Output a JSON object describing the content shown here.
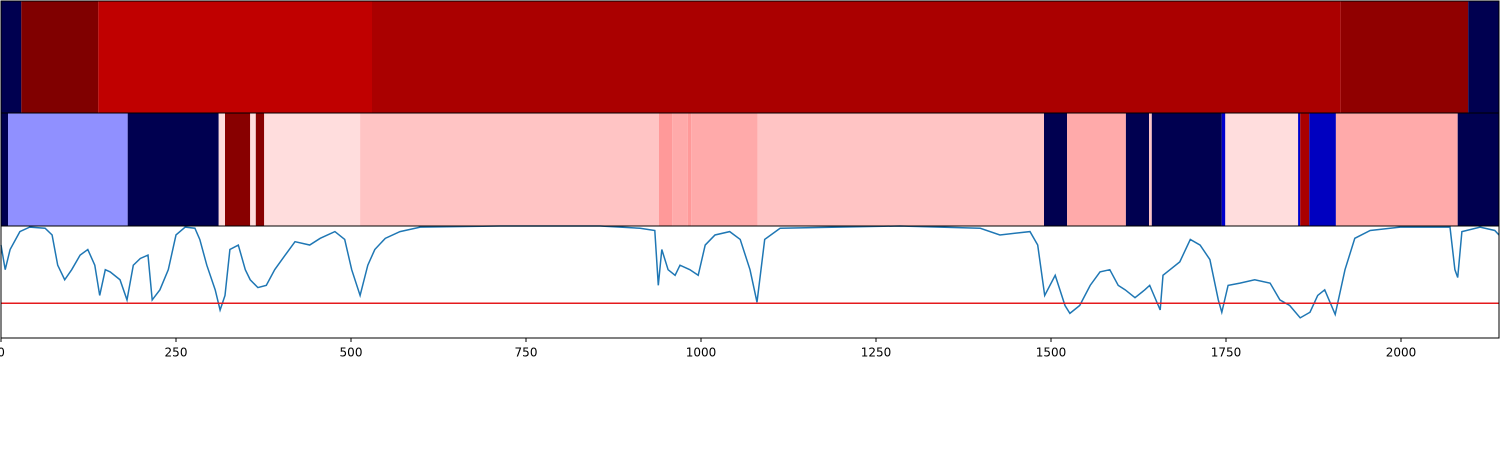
{
  "chart_data": [
    {
      "type": "segments",
      "edges": [
        0,
        29,
        139,
        530,
        1914,
        2096,
        2140
      ],
      "colors": [
        "#000050",
        "#800000",
        "#c00000",
        "#aa0000",
        "#900000",
        "#000050"
      ],
      "xlim": [
        0,
        2140
      ]
    },
    {
      "type": "segments",
      "edges": [
        0,
        10,
        181,
        311,
        320,
        356,
        364,
        376,
        513,
        940,
        959,
        981,
        986,
        1081,
        1490,
        1523,
        1607,
        1640,
        1644,
        1744,
        1749,
        1853,
        1856,
        1869,
        1907,
        2081,
        2140
      ],
      "colors": [
        "#000050",
        "#9090ff",
        "#000050",
        "#ffdddd",
        "#880000",
        "#ffdddd",
        "#880000",
        "#ffdddd",
        "#ffc4c4",
        "#ff9999",
        "#ffaaaa",
        "#ff9999",
        "#ffaaaa",
        "#ffc4c4",
        "#000050",
        "#ffaaaa",
        "#000050",
        "#ffc4c4",
        "#000050",
        "#0000cc",
        "#ffdddd",
        "#0000cc",
        "#aa0000",
        "#0000c0",
        "#ffaaaa",
        "#000050"
      ],
      "xlim": [
        0,
        2140
      ]
    },
    {
      "type": "line",
      "x": [
        0,
        6,
        13,
        27,
        41,
        63,
        73,
        81,
        91,
        101,
        113,
        124,
        134,
        141,
        149,
        156,
        170,
        180,
        189,
        199,
        210,
        216,
        227,
        239,
        250,
        263,
        277,
        284,
        294,
        306,
        313,
        320,
        327,
        339,
        349,
        356,
        367,
        379,
        391,
        406,
        420,
        441,
        456,
        477,
        491,
        501,
        513,
        524,
        534,
        549,
        570,
        599,
        713,
        856,
        913,
        934,
        939,
        944,
        953,
        963,
        970,
        984,
        996,
        1006,
        1020,
        1041,
        1056,
        1070,
        1080,
        1091,
        1113,
        1284,
        1399,
        1427,
        1470,
        1481,
        1491,
        1506,
        1520,
        1527,
        1541,
        1556,
        1570,
        1584,
        1596,
        1606,
        1620,
        1634,
        1641,
        1656,
        1660,
        1670,
        1684,
        1699,
        1713,
        1727,
        1739,
        1744,
        1753,
        1770,
        1791,
        1813,
        1827,
        1841,
        1856,
        1870,
        1881,
        1891,
        1906,
        1920,
        1934,
        1956,
        1999,
        2070,
        2077,
        2081,
        2087,
        2113,
        2134,
        2140
      ],
      "values": [
        0.83,
        0.61,
        0.79,
        0.95,
        0.99,
        0.98,
        0.92,
        0.65,
        0.52,
        0.61,
        0.74,
        0.79,
        0.65,
        0.38,
        0.61,
        0.59,
        0.52,
        0.34,
        0.65,
        0.71,
        0.74,
        0.34,
        0.43,
        0.61,
        0.92,
        0.99,
        0.98,
        0.88,
        0.65,
        0.43,
        0.25,
        0.38,
        0.79,
        0.83,
        0.61,
        0.52,
        0.45,
        0.47,
        0.61,
        0.74,
        0.86,
        0.83,
        0.89,
        0.95,
        0.88,
        0.61,
        0.38,
        0.65,
        0.79,
        0.89,
        0.95,
        0.99,
        1,
        1,
        0.98,
        0.96,
        0.47,
        0.79,
        0.61,
        0.56,
        0.65,
        0.61,
        0.56,
        0.83,
        0.92,
        0.95,
        0.88,
        0.61,
        0.32,
        0.88,
        0.98,
        1,
        0.98,
        0.92,
        0.95,
        0.83,
        0.38,
        0.56,
        0.29,
        0.22,
        0.29,
        0.47,
        0.59,
        0.61,
        0.47,
        0.43,
        0.36,
        0.43,
        0.47,
        0.25,
        0.56,
        0.61,
        0.68,
        0.88,
        0.83,
        0.7,
        0.34,
        0.23,
        0.47,
        0.49,
        0.52,
        0.49,
        0.34,
        0.29,
        0.18,
        0.23,
        0.38,
        0.43,
        0.21,
        0.61,
        0.89,
        0.96,
        0.99,
        0.99,
        0.61,
        0.54,
        0.95,
        0.99,
        0.96,
        0.92
      ],
      "color": "#1f77b4",
      "threshold": 0.31,
      "threshold_color": "#e41a1c",
      "xlim": [
        0,
        2140
      ],
      "ylim": [
        0,
        1
      ],
      "xticks": [
        0,
        250,
        500,
        750,
        1000,
        1250,
        1500,
        1750,
        2000
      ]
    }
  ]
}
